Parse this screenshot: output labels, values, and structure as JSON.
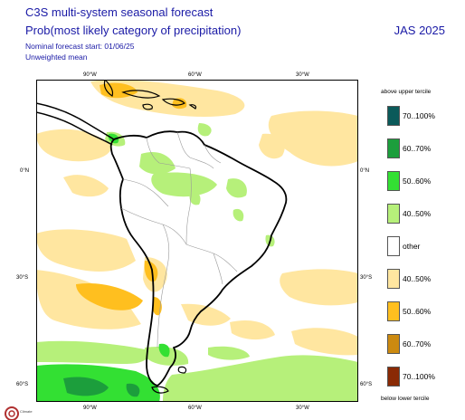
{
  "header": {
    "title_line1": "C3S multi-system seasonal forecast",
    "title_line2": "Prob(most likely category of precipitation)",
    "nominal_start": "Nominal forecast start: 01/06/25",
    "weighting": "Unweighted mean",
    "period": "JAS 2025"
  },
  "axes": {
    "lon_top": [
      "90°W",
      "60°W",
      "30°W"
    ],
    "lon_bottom": [
      "90°W",
      "60°W",
      "30°W"
    ],
    "lat_left": [
      "0°N",
      "30°S",
      "60°S"
    ],
    "lat_right": [
      "0°N",
      "30°S",
      "60°S"
    ]
  },
  "legend": {
    "top_title": "above upper tercile",
    "bottom_title": "below lower tercile",
    "items": [
      {
        "label": "70..100%",
        "color": "#0b5a5a"
      },
      {
        "label": "60..70%",
        "color": "#1c9e3c"
      },
      {
        "label": "50..60%",
        "color": "#33e033"
      },
      {
        "label": "40..50%",
        "color": "#b6f07a"
      },
      {
        "label": "other",
        "color": "#ffffff"
      },
      {
        "label": "40..50%",
        "color": "#ffe6a0"
      },
      {
        "label": "50..60%",
        "color": "#ffbf1f"
      },
      {
        "label": "60..70%",
        "color": "#cc8a10"
      },
      {
        "label": "70..100%",
        "color": "#8a2a05"
      }
    ]
  },
  "logo": {
    "text": "Climate"
  }
}
